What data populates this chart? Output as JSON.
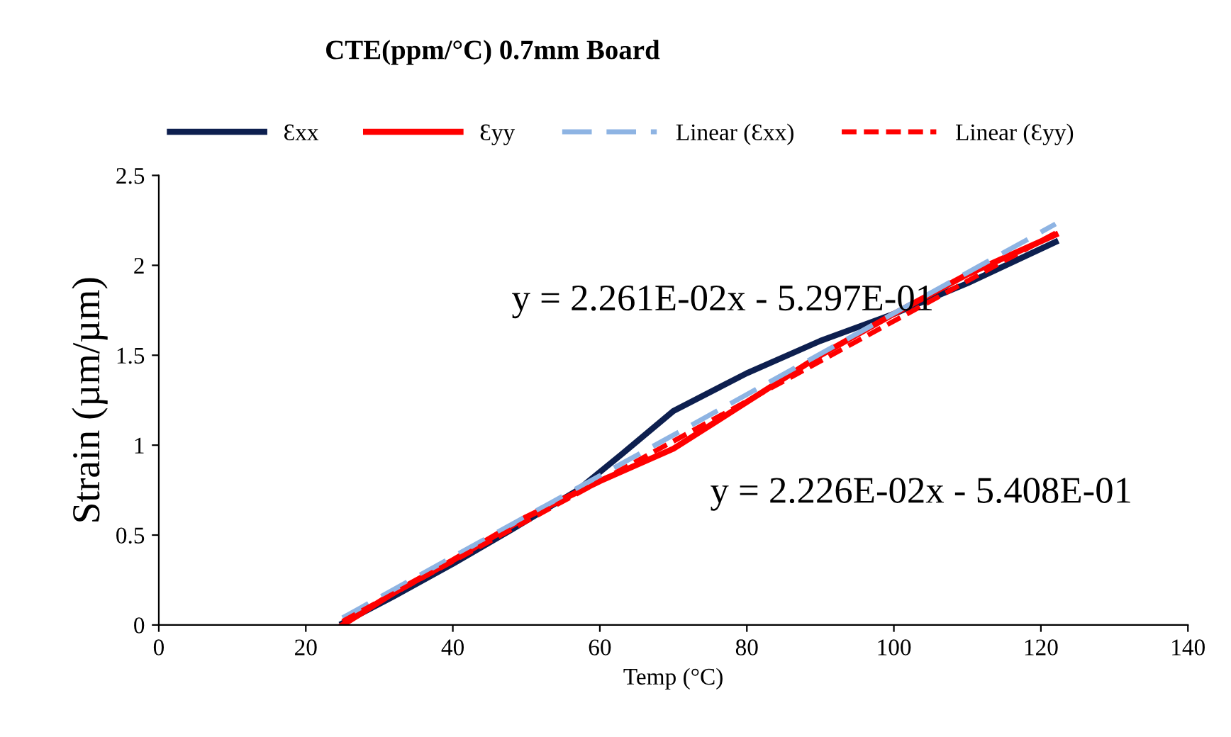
{
  "chart_data": {
    "type": "line",
    "title": "CTE(ppm/°C) 0.7mm Board",
    "xlabel": "Temp (°C)",
    "ylabel": "Strain (µm/µm)",
    "xlim": [
      0,
      140
    ],
    "xticks": [
      0,
      20,
      40,
      60,
      80,
      100,
      120,
      140
    ],
    "ylim": [
      0,
      2.5
    ],
    "yticks": [
      0,
      0.5,
      1,
      1.5,
      2,
      2.5
    ],
    "grid": false,
    "legend": "top",
    "marker": "none",
    "annotations": [
      "y = 2.261E-02x - 5.297E-01",
      "y = 2.226E-02x - 5.408E-01"
    ],
    "series": [
      {
        "name": "Ɛxx",
        "color": "#0d1f4f",
        "line_style": "solid",
        "x": [
          25,
          32,
          40,
          48,
          57,
          63,
          70,
          80,
          90,
          100,
          110,
          122
        ],
        "values": [
          0.01,
          0.16,
          0.34,
          0.53,
          0.75,
          0.95,
          1.19,
          1.4,
          1.58,
          1.73,
          1.9,
          2.13
        ]
      },
      {
        "name": "Ɛyy",
        "color": "#ff0000",
        "line_style": "solid",
        "x": [
          25,
          32,
          40,
          50,
          60,
          70,
          80,
          90,
          100,
          110,
          122
        ],
        "values": [
          0.0,
          0.18,
          0.36,
          0.6,
          0.8,
          0.98,
          1.24,
          1.5,
          1.73,
          1.95,
          2.17
        ]
      },
      {
        "name": "Linear (Ɛxx)",
        "color": "#8eb4e3",
        "line_style": "dashed",
        "x": [
          25,
          122
        ],
        "values": [
          0.04,
          2.23
        ]
      },
      {
        "name": "Linear (Ɛyy)",
        "color": "#ff0000",
        "line_style": "dotted",
        "x": [
          25,
          122
        ],
        "values": [
          0.02,
          2.18
        ]
      }
    ]
  }
}
